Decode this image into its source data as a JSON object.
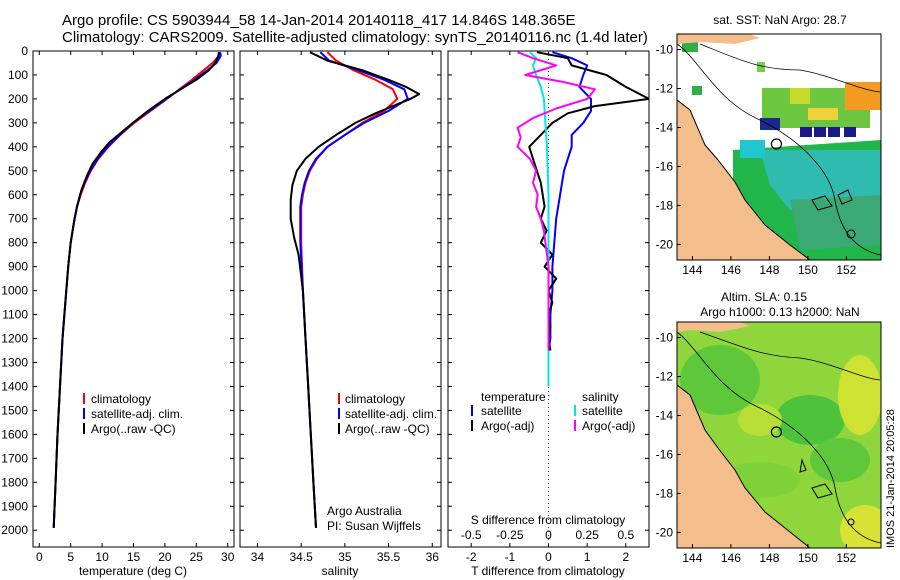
{
  "header": {
    "line1": "Argo profile: CS 5903944_58 14-Jan-2014 20140118_417 14.846S 148.365E",
    "line2": "Climatology: CARS2009. Satellite-adjusted climatology: synTS_20140116.nc (1.4d later)"
  },
  "colors": {
    "climatology": "#ff0000",
    "satellite": "#0000ff",
    "argo": "#000000",
    "satellite_s": "#00e5e5",
    "argo_s": "#ff00ff",
    "land": "#f4be8c",
    "panel_border": "#000000"
  },
  "depth_ticks": [
    "0",
    "100",
    "200",
    "300",
    "400",
    "500",
    "600",
    "700",
    "800",
    "900",
    "1000",
    "1100",
    "1200",
    "1300",
    "1400",
    "1500",
    "1600",
    "1700",
    "1800",
    "1900",
    "2000"
  ],
  "chart_data": [
    {
      "type": "line",
      "name": "temperature-profile",
      "xlabel": "temperature (deg C)",
      "ylabel": "depth",
      "xlim": [
        -1,
        31
      ],
      "ylim": [
        0,
        2070
      ],
      "x_ticks": [
        "0",
        "5",
        "10",
        "15",
        "20",
        "25",
        "30"
      ],
      "x_tick_values": [
        0,
        5,
        10,
        15,
        20,
        25,
        30
      ],
      "legend": [
        "climatology",
        "satellite-adj. clim.",
        "Argo(..raw -QC)"
      ],
      "series": [
        {
          "name": "climatology",
          "color": "#ff0000",
          "depth": [
            5,
            20,
            50,
            80,
            120,
            160,
            200,
            250,
            300,
            350,
            400,
            450,
            500,
            550,
            600,
            650,
            700,
            800,
            900,
            1000,
            1200,
            1400,
            1600,
            1800,
            1990
          ],
          "values": [
            28.7,
            28.6,
            27.6,
            26.2,
            24.3,
            22.3,
            20.3,
            17.7,
            15.1,
            12.9,
            11.0,
            9.4,
            8.2,
            7.3,
            6.6,
            6.0,
            5.6,
            5.0,
            4.6,
            4.3,
            3.7,
            3.3,
            2.9,
            2.6,
            2.3
          ]
        },
        {
          "name": "satellite-adj. clim.",
          "color": "#0000ff",
          "depth": [
            5,
            20,
            50,
            80,
            120,
            160,
            200,
            250,
            300,
            350,
            400,
            450,
            500,
            550,
            600,
            650,
            700,
            800,
            900,
            1000,
            1200,
            1400,
            1600,
            1800,
            1990
          ],
          "values": [
            28.8,
            28.9,
            28.2,
            26.8,
            24.7,
            22.4,
            20.2,
            17.5,
            14.9,
            12.8,
            10.9,
            9.3,
            8.1,
            7.2,
            6.5,
            6.0,
            5.6,
            5.0,
            4.6,
            4.3,
            3.7,
            3.3,
            2.9,
            2.6,
            2.3
          ]
        },
        {
          "name": "Argo(..raw -QC)",
          "color": "#000000",
          "depth": [
            5,
            20,
            50,
            80,
            120,
            160,
            200,
            250,
            300,
            350,
            380,
            420,
            470,
            520,
            580,
            650,
            720,
            800,
            900,
            1000,
            1200,
            1400,
            1600,
            1800,
            1990
          ],
          "values": [
            28.6,
            28.5,
            28.0,
            27.0,
            25.0,
            22.5,
            20.0,
            17.3,
            14.9,
            12.6,
            11.2,
            9.9,
            8.5,
            7.6,
            6.7,
            6.0,
            5.5,
            5.0,
            4.6,
            4.3,
            3.7,
            3.3,
            2.9,
            2.6,
            2.3
          ]
        }
      ]
    },
    {
      "type": "line",
      "name": "salinity-profile",
      "xlabel": "salinity",
      "xlim": [
        33.8,
        36.1
      ],
      "ylim": [
        0,
        2070
      ],
      "x_ticks": [
        "34",
        "34.5",
        "35",
        "35.5",
        "36"
      ],
      "x_tick_values": [
        34,
        34.5,
        35,
        35.5,
        36
      ],
      "legend": [
        "climatology",
        "satellite-adj. clim.",
        "Argo(..raw -QC)"
      ],
      "annotation": [
        "Argo Australia",
        "PI: Susan Wijffels"
      ],
      "series": [
        {
          "name": "climatology",
          "color": "#ff0000",
          "depth": [
            5,
            40,
            80,
            120,
            160,
            200,
            250,
            300,
            350,
            400,
            450,
            500,
            550,
            600,
            650,
            700,
            800,
            1000,
            1200,
            1400,
            1600,
            1800,
            1990
          ],
          "values": [
            34.8,
            34.9,
            35.1,
            35.35,
            35.55,
            35.6,
            35.45,
            35.2,
            35.0,
            34.8,
            34.68,
            34.6,
            34.55,
            34.52,
            34.5,
            34.5,
            34.5,
            34.52,
            34.55,
            34.58,
            34.61,
            34.64,
            34.67
          ]
        },
        {
          "name": "satellite-adj. clim.",
          "color": "#0000ff",
          "depth": [
            5,
            40,
            80,
            120,
            160,
            200,
            250,
            300,
            350,
            400,
            450,
            500,
            550,
            600,
            650,
            700,
            800,
            1000,
            1200,
            1400,
            1600,
            1800,
            1990
          ],
          "values": [
            34.72,
            34.82,
            35.15,
            35.45,
            35.68,
            35.72,
            35.5,
            35.22,
            35.0,
            34.8,
            34.67,
            34.59,
            34.54,
            34.51,
            34.49,
            34.49,
            34.49,
            34.52,
            34.55,
            34.58,
            34.61,
            34.64,
            34.67
          ]
        },
        {
          "name": "Argo(..raw -QC)",
          "color": "#000000",
          "depth": [
            5,
            40,
            80,
            120,
            150,
            180,
            200,
            230,
            260,
            300,
            350,
            400,
            450,
            500,
            560,
            620,
            700,
            780,
            850,
            1000,
            1200,
            1400,
            1600,
            1800,
            1990
          ],
          "values": [
            34.6,
            34.8,
            35.2,
            35.5,
            35.7,
            35.85,
            35.75,
            35.55,
            35.35,
            35.12,
            34.9,
            34.7,
            34.55,
            34.45,
            34.4,
            34.38,
            34.38,
            34.42,
            34.47,
            34.52,
            34.55,
            34.58,
            34.61,
            34.64,
            34.67
          ]
        }
      ]
    },
    {
      "type": "line",
      "name": "difference-profile",
      "xlabel": "T difference from climatology",
      "top_xlabel": "S difference from climatology",
      "xlim": [
        -2.6,
        2.6
      ],
      "ylim": [
        0,
        2070
      ],
      "x_ticks": [
        "-2",
        "-1",
        "0",
        "1",
        "2"
      ],
      "x_tick_values": [
        -2,
        -1,
        0,
        1,
        2
      ],
      "s_ticks": [
        "-0.5",
        "-0.25",
        "0",
        "0.25",
        "0.5"
      ],
      "s_tick_values": [
        -0.5,
        -0.25,
        0,
        0.25,
        0.5
      ],
      "legend_t_title": "temperature",
      "legend_s_title": "salinity",
      "legend": [
        "satellite",
        "Argo(-adj)",
        "satellite",
        "Argo(-adj)"
      ],
      "series": [
        {
          "name": "T satellite",
          "color": "#0000ff",
          "depth": [
            5,
            30,
            60,
            100,
            150,
            200,
            250,
            300,
            350,
            400,
            450,
            500,
            600,
            700,
            800,
            900,
            1000,
            1100,
            1200,
            1250
          ],
          "values": [
            0.1,
            0.6,
            1.0,
            0.9,
            0.8,
            1.1,
            1.1,
            0.9,
            0.6,
            0.6,
            0.5,
            0.4,
            0.3,
            0.2,
            0.15,
            0.1,
            0.1,
            0.05,
            0.05,
            0.0
          ]
        },
        {
          "name": "T Argo(-adj)",
          "color": "#000000",
          "depth": [
            5,
            30,
            60,
            100,
            150,
            200,
            230,
            260,
            300,
            350,
            400,
            450,
            500,
            550,
            600,
            650,
            700,
            750,
            800,
            850,
            900,
            950,
            1000,
            1050,
            1100,
            1150,
            1200,
            1250
          ],
          "values": [
            -0.3,
            0.5,
            0.6,
            1.5,
            2.0,
            2.6,
            1.2,
            0.5,
            0.1,
            -0.2,
            -0.5,
            -0.4,
            -0.3,
            -0.2,
            -0.15,
            -0.1,
            -0.2,
            -0.05,
            -0.2,
            0.1,
            -0.1,
            0.2,
            0.0,
            0.1,
            0.0,
            0.05,
            0.0,
            0.05
          ]
        },
        {
          "name": "S satellite",
          "color": "#00e5e5",
          "depth": [
            5,
            30,
            60,
            100,
            150,
            200,
            300,
            400,
            600,
            800,
            1000,
            1200,
            1400
          ],
          "values": [
            -0.12,
            -0.08,
            -0.1,
            -0.08,
            -0.05,
            -0.03,
            -0.02,
            -0.01,
            0.0,
            0.0,
            0.0,
            0.0,
            0.0
          ]
        },
        {
          "name": "S Argo(-adj)",
          "color": "#ff00ff",
          "depth": [
            5,
            30,
            60,
            100,
            130,
            160,
            200,
            240,
            280,
            320,
            360,
            400,
            450,
            500,
            550,
            600,
            650,
            700,
            750,
            800,
            850,
            900,
            950,
            1000,
            1100,
            1200,
            1250
          ],
          "values": [
            -0.2,
            -0.1,
            0.05,
            -0.15,
            0.1,
            0.3,
            0.25,
            0.05,
            -0.1,
            -0.2,
            -0.18,
            -0.2,
            -0.12,
            -0.08,
            -0.1,
            -0.07,
            -0.08,
            -0.05,
            -0.03,
            -0.02,
            -0.01,
            0.0,
            0.0,
            0.0,
            0.0,
            0.0,
            0.0
          ]
        }
      ]
    },
    {
      "type": "heatmap",
      "name": "sst-map",
      "title": "sat. SST: NaN Argo: 28.7",
      "x_ticks": [
        "144",
        "146",
        "148",
        "150",
        "152"
      ],
      "x_tick_values": [
        144,
        146,
        148,
        150,
        152
      ],
      "y_ticks": [
        "-10",
        "-12",
        "-14",
        "-16",
        "-18",
        "-20"
      ],
      "y_tick_values": [
        -10,
        -12,
        -14,
        -16,
        -18,
        -20
      ],
      "xlim": [
        143.2,
        153.8
      ],
      "ylim": [
        -20.8,
        -9.2
      ],
      "argo_position": [
        148.365,
        -14.846
      ]
    },
    {
      "type": "heatmap",
      "name": "sla-map",
      "title_line1": "Altim. SLA: 0.15",
      "title_line2": "Argo h1000: 0.13 h2000: NaN",
      "x_ticks": [
        "144",
        "146",
        "148",
        "150",
        "152"
      ],
      "x_tick_values": [
        144,
        146,
        148,
        150,
        152
      ],
      "y_ticks": [
        "-10",
        "-12",
        "-14",
        "-16",
        "-18",
        "-20"
      ],
      "y_tick_values": [
        -10,
        -12,
        -14,
        -16,
        -18,
        -20
      ],
      "xlim": [
        143.2,
        153.8
      ],
      "ylim": [
        -20.8,
        -9.2
      ],
      "argo_position": [
        148.365,
        -14.846
      ]
    }
  ],
  "side_label": "IMOS 21-Jan-2014 20:05:28"
}
